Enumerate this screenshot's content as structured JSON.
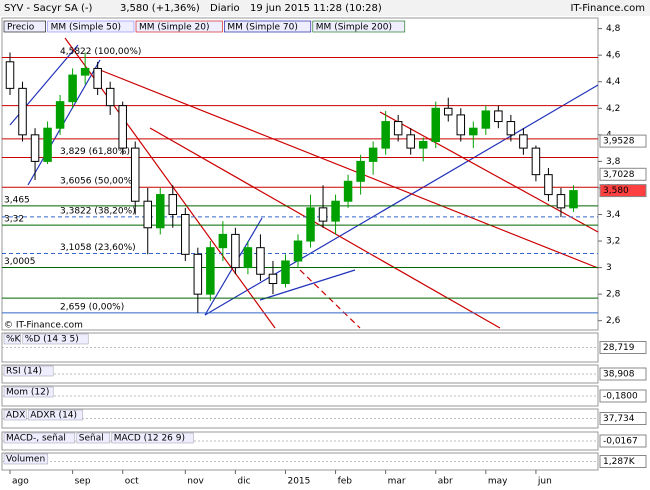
{
  "header": {
    "title": "SYV - Sacyr SA (-)",
    "price": "3,580 (+1,36%)",
    "period": "Diario",
    "date": "19 jun 2015 11:28 (10:28)",
    "brand": "IT-Finance.com"
  },
  "chart_data": {
    "type": "candlestick",
    "legend": [
      {
        "name": "Precio",
        "color": "#000000"
      },
      {
        "name": "MM (Simple 50)",
        "color": "#8080ff"
      },
      {
        "name": "MM (Simple 20)",
        "color": "#cc0000"
      },
      {
        "name": "MM (Simple 70)",
        "color": "#000099"
      },
      {
        "name": "MM (Simple 200)",
        "color": "#006600"
      }
    ],
    "categories": [
      "ago",
      null,
      null,
      null,
      null,
      "sep",
      null,
      null,
      null,
      "oct",
      null,
      null,
      null,
      null,
      "nov",
      null,
      null,
      null,
      "dic",
      null,
      null,
      null,
      "2015",
      null,
      null,
      null,
      "feb",
      null,
      null,
      null,
      "mar",
      null,
      null,
      null,
      "abr",
      null,
      null,
      null,
      "may",
      null,
      null,
      null,
      "jun",
      null,
      null,
      null
    ],
    "open": [
      4.55,
      4.35,
      4.0,
      3.8,
      4.05,
      4.25,
      4.45,
      4.5,
      4.35,
      4.22,
      3.9,
      3.5,
      3.3,
      3.55,
      3.4,
      3.1,
      2.8,
      3.15,
      3.25,
      3.0,
      3.15,
      2.95,
      2.88,
      3.05,
      3.2,
      3.45,
      3.35,
      3.5,
      3.65,
      3.8,
      3.9,
      4.1,
      4.0,
      3.9,
      3.95,
      4.2,
      4.15,
      4.0,
      4.05,
      4.18,
      4.1,
      4.0,
      3.9,
      3.7,
      3.55,
      3.45
    ],
    "high": [
      4.62,
      4.4,
      4.05,
      4.1,
      4.3,
      4.5,
      4.62,
      4.55,
      4.4,
      4.25,
      3.95,
      3.6,
      3.6,
      3.62,
      3.45,
      3.15,
      3.2,
      3.35,
      3.3,
      3.2,
      3.25,
      3.05,
      3.1,
      3.25,
      3.55,
      3.62,
      3.55,
      3.7,
      3.85,
      3.95,
      4.18,
      4.15,
      4.05,
      3.98,
      4.25,
      4.28,
      4.2,
      4.1,
      4.22,
      4.22,
      4.15,
      4.05,
      3.92,
      3.75,
      3.6,
      3.62
    ],
    "low": [
      4.3,
      3.95,
      3.66,
      3.78,
      4.0,
      4.2,
      4.38,
      4.3,
      4.15,
      3.85,
      3.4,
      3.1,
      3.25,
      3.3,
      3.05,
      2.66,
      2.75,
      3.05,
      2.95,
      2.95,
      2.9,
      2.8,
      2.85,
      3.0,
      3.15,
      3.3,
      3.25,
      3.45,
      3.55,
      3.7,
      3.85,
      3.95,
      3.85,
      3.8,
      3.9,
      4.1,
      3.95,
      3.9,
      4.0,
      4.05,
      3.95,
      3.85,
      3.65,
      3.5,
      3.38,
      3.42
    ],
    "close": [
      4.35,
      4.0,
      3.8,
      4.05,
      4.25,
      4.45,
      4.5,
      4.35,
      4.22,
      3.9,
      3.5,
      3.3,
      3.55,
      3.4,
      3.1,
      2.8,
      3.15,
      3.25,
      3.0,
      3.15,
      2.95,
      2.88,
      3.05,
      3.2,
      3.45,
      3.35,
      3.5,
      3.65,
      3.8,
      3.9,
      4.1,
      4.0,
      3.9,
      3.95,
      4.2,
      4.15,
      4.0,
      4.05,
      4.18,
      4.1,
      4.0,
      3.9,
      3.7,
      3.55,
      3.45,
      3.58
    ],
    "up_color": "#00a000",
    "down_color": "#000000",
    "ylim": [
      2.53,
      4.88
    ],
    "yticks": [
      {
        "value": 2.6,
        "label": "2,6"
      },
      {
        "value": 2.8,
        "label": "2,8"
      },
      3,
      {
        "value": 3.2,
        "label": "3,2"
      },
      {
        "value": 3.4,
        "label": "3,4"
      },
      {
        "value": 3.6,
        "label": "3,6"
      },
      {
        "value": 3.8,
        "label": "3,8"
      },
      4,
      {
        "value": 4.2,
        "label": "4,2"
      },
      {
        "value": 4.4,
        "label": "4,4"
      },
      {
        "value": 4.6,
        "label": "4,6"
      },
      {
        "value": 4.8,
        "label": "4,8"
      }
    ],
    "levels": [
      {
        "value": 4.5822,
        "label": "4,5822 (100,00%)",
        "color": "#cc0000",
        "style": "fib"
      },
      {
        "value": 4.22,
        "color": "#cc0000",
        "style": "level"
      },
      {
        "value": 3.97,
        "color": "#cc0000",
        "style": "level"
      },
      {
        "value": 3.829,
        "label": "3,829 (61,80%)",
        "color": "#cc0000",
        "style": "fib"
      },
      {
        "value": 3.6056,
        "label": "3,6056 (50,00%)",
        "color": "#cc0000",
        "style": "fib"
      },
      {
        "value": 3.465,
        "label": "3,465",
        "color": "#006600",
        "style": "level"
      },
      {
        "value": 3.3822,
        "label": "3,3822 (38,20%)",
        "color": "#3366cc",
        "style": "fib-dashed"
      },
      {
        "value": 3.32,
        "label": "3,32",
        "color": "#006600",
        "style": "level"
      },
      {
        "value": 3.1058,
        "label": "3,1058 (23,60%)",
        "color": "#3366cc",
        "style": "fib-dashed"
      },
      {
        "value": 3.0005,
        "label": "3,0005",
        "color": "#006600",
        "style": "level"
      },
      {
        "value": 2.77,
        "color": "#006600",
        "style": "level"
      },
      {
        "value": 2.659,
        "label": "2,659 (0,00%)",
        "color": "#3366cc",
        "style": "fib"
      }
    ],
    "price_tags": [
      {
        "value": 3.9528,
        "label": "3,9528",
        "color": "#ffffff"
      },
      {
        "value": 3.7028,
        "label": "3,7028",
        "color": "#ffffff"
      },
      {
        "value": 3.58,
        "label": "3,580",
        "color": "#ff4040"
      }
    ],
    "copyright": "© IT-Finance.com",
    "indicators": [
      {
        "titles": [
          "%K",
          "%D (14 3 5)"
        ],
        "last": "28,719"
      },
      {
        "titles": [
          "RSI (14)"
        ],
        "last": "38,908"
      },
      {
        "titles": [
          "Mom (12)"
        ],
        "last": "-0,1800"
      },
      {
        "titles": [
          "ADX",
          "ADXR (14)"
        ],
        "last": "37,734"
      },
      {
        "titles": [
          "MACD-, señal",
          "Señal",
          "MACD (12 26 9)"
        ],
        "last": "-0,0167"
      },
      {
        "titles": [
          "Volumen"
        ],
        "last": "1,287K"
      }
    ]
  }
}
